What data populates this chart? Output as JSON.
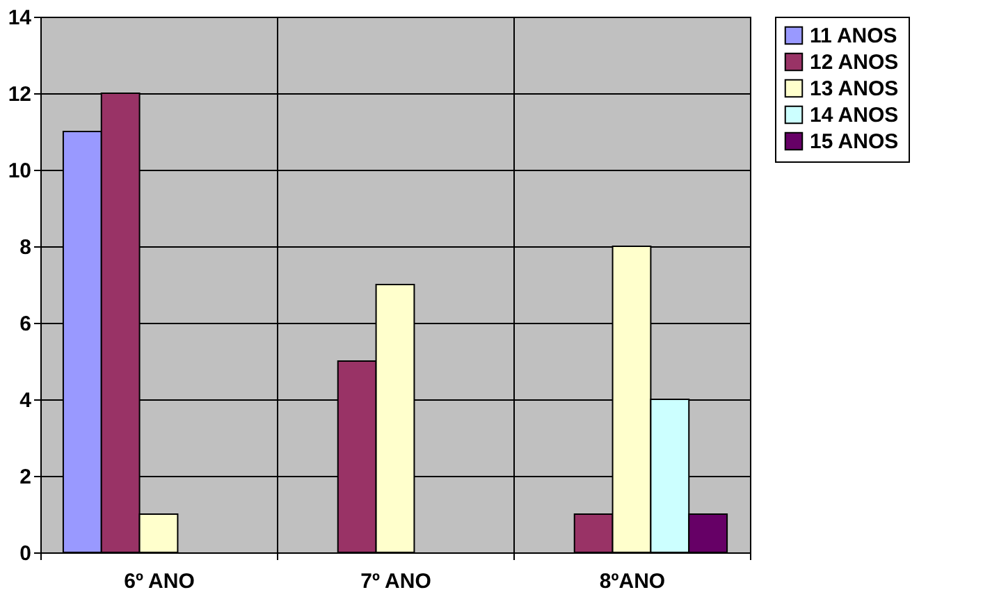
{
  "chart_data": {
    "type": "bar",
    "categories": [
      "6º ANO",
      "7º ANO",
      "8ºANO"
    ],
    "series": [
      {
        "name": "11 ANOS",
        "color": "#9999ff",
        "values": [
          11,
          null,
          null
        ]
      },
      {
        "name": "12 ANOS",
        "color": "#993366",
        "values": [
          12,
          5,
          1
        ]
      },
      {
        "name": "13 ANOS",
        "color": "#ffffcc",
        "values": [
          1,
          7,
          8
        ]
      },
      {
        "name": "14 ANOS",
        "color": "#ccffff",
        "values": [
          null,
          null,
          4
        ]
      },
      {
        "name": "15 ANOS",
        "color": "#660066",
        "values": [
          null,
          null,
          1
        ]
      }
    ],
    "ylim": [
      0,
      14
    ],
    "yticks": [
      0,
      2,
      4,
      6,
      8,
      10,
      12,
      14
    ],
    "grid": true,
    "legend": "right"
  }
}
